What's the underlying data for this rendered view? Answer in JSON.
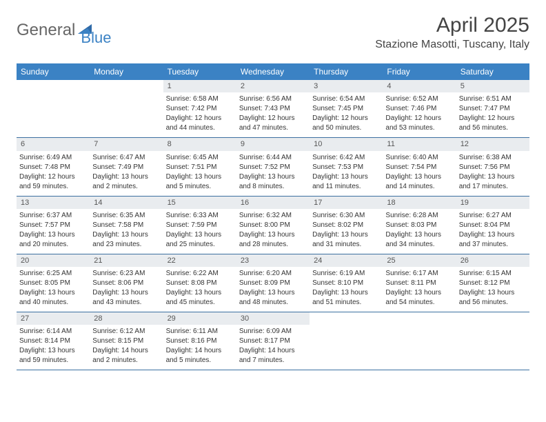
{
  "logo": {
    "text1": "General",
    "text2": "Blue"
  },
  "title": "April 2025",
  "location": "Stazione Masotti, Tuscany, Italy",
  "colors": {
    "header_bg": "#3b82c4",
    "header_text": "#ffffff",
    "daynum_bg": "#e9ecef",
    "week_border": "#3b6fa0",
    "body_text": "#333333",
    "logo_blue": "#3b82c4",
    "logo_gray": "#666666"
  },
  "day_names": [
    "Sunday",
    "Monday",
    "Tuesday",
    "Wednesday",
    "Thursday",
    "Friday",
    "Saturday"
  ],
  "weeks": [
    [
      null,
      null,
      {
        "n": "1",
        "sr": "Sunrise: 6:58 AM",
        "ss": "Sunset: 7:42 PM",
        "dl1": "Daylight: 12 hours",
        "dl2": "and 44 minutes."
      },
      {
        "n": "2",
        "sr": "Sunrise: 6:56 AM",
        "ss": "Sunset: 7:43 PM",
        "dl1": "Daylight: 12 hours",
        "dl2": "and 47 minutes."
      },
      {
        "n": "3",
        "sr": "Sunrise: 6:54 AM",
        "ss": "Sunset: 7:45 PM",
        "dl1": "Daylight: 12 hours",
        "dl2": "and 50 minutes."
      },
      {
        "n": "4",
        "sr": "Sunrise: 6:52 AM",
        "ss": "Sunset: 7:46 PM",
        "dl1": "Daylight: 12 hours",
        "dl2": "and 53 minutes."
      },
      {
        "n": "5",
        "sr": "Sunrise: 6:51 AM",
        "ss": "Sunset: 7:47 PM",
        "dl1": "Daylight: 12 hours",
        "dl2": "and 56 minutes."
      }
    ],
    [
      {
        "n": "6",
        "sr": "Sunrise: 6:49 AM",
        "ss": "Sunset: 7:48 PM",
        "dl1": "Daylight: 12 hours",
        "dl2": "and 59 minutes."
      },
      {
        "n": "7",
        "sr": "Sunrise: 6:47 AM",
        "ss": "Sunset: 7:49 PM",
        "dl1": "Daylight: 13 hours",
        "dl2": "and 2 minutes."
      },
      {
        "n": "8",
        "sr": "Sunrise: 6:45 AM",
        "ss": "Sunset: 7:51 PM",
        "dl1": "Daylight: 13 hours",
        "dl2": "and 5 minutes."
      },
      {
        "n": "9",
        "sr": "Sunrise: 6:44 AM",
        "ss": "Sunset: 7:52 PM",
        "dl1": "Daylight: 13 hours",
        "dl2": "and 8 minutes."
      },
      {
        "n": "10",
        "sr": "Sunrise: 6:42 AM",
        "ss": "Sunset: 7:53 PM",
        "dl1": "Daylight: 13 hours",
        "dl2": "and 11 minutes."
      },
      {
        "n": "11",
        "sr": "Sunrise: 6:40 AM",
        "ss": "Sunset: 7:54 PM",
        "dl1": "Daylight: 13 hours",
        "dl2": "and 14 minutes."
      },
      {
        "n": "12",
        "sr": "Sunrise: 6:38 AM",
        "ss": "Sunset: 7:56 PM",
        "dl1": "Daylight: 13 hours",
        "dl2": "and 17 minutes."
      }
    ],
    [
      {
        "n": "13",
        "sr": "Sunrise: 6:37 AM",
        "ss": "Sunset: 7:57 PM",
        "dl1": "Daylight: 13 hours",
        "dl2": "and 20 minutes."
      },
      {
        "n": "14",
        "sr": "Sunrise: 6:35 AM",
        "ss": "Sunset: 7:58 PM",
        "dl1": "Daylight: 13 hours",
        "dl2": "and 23 minutes."
      },
      {
        "n": "15",
        "sr": "Sunrise: 6:33 AM",
        "ss": "Sunset: 7:59 PM",
        "dl1": "Daylight: 13 hours",
        "dl2": "and 25 minutes."
      },
      {
        "n": "16",
        "sr": "Sunrise: 6:32 AM",
        "ss": "Sunset: 8:00 PM",
        "dl1": "Daylight: 13 hours",
        "dl2": "and 28 minutes."
      },
      {
        "n": "17",
        "sr": "Sunrise: 6:30 AM",
        "ss": "Sunset: 8:02 PM",
        "dl1": "Daylight: 13 hours",
        "dl2": "and 31 minutes."
      },
      {
        "n": "18",
        "sr": "Sunrise: 6:28 AM",
        "ss": "Sunset: 8:03 PM",
        "dl1": "Daylight: 13 hours",
        "dl2": "and 34 minutes."
      },
      {
        "n": "19",
        "sr": "Sunrise: 6:27 AM",
        "ss": "Sunset: 8:04 PM",
        "dl1": "Daylight: 13 hours",
        "dl2": "and 37 minutes."
      }
    ],
    [
      {
        "n": "20",
        "sr": "Sunrise: 6:25 AM",
        "ss": "Sunset: 8:05 PM",
        "dl1": "Daylight: 13 hours",
        "dl2": "and 40 minutes."
      },
      {
        "n": "21",
        "sr": "Sunrise: 6:23 AM",
        "ss": "Sunset: 8:06 PM",
        "dl1": "Daylight: 13 hours",
        "dl2": "and 43 minutes."
      },
      {
        "n": "22",
        "sr": "Sunrise: 6:22 AM",
        "ss": "Sunset: 8:08 PM",
        "dl1": "Daylight: 13 hours",
        "dl2": "and 45 minutes."
      },
      {
        "n": "23",
        "sr": "Sunrise: 6:20 AM",
        "ss": "Sunset: 8:09 PM",
        "dl1": "Daylight: 13 hours",
        "dl2": "and 48 minutes."
      },
      {
        "n": "24",
        "sr": "Sunrise: 6:19 AM",
        "ss": "Sunset: 8:10 PM",
        "dl1": "Daylight: 13 hours",
        "dl2": "and 51 minutes."
      },
      {
        "n": "25",
        "sr": "Sunrise: 6:17 AM",
        "ss": "Sunset: 8:11 PM",
        "dl1": "Daylight: 13 hours",
        "dl2": "and 54 minutes."
      },
      {
        "n": "26",
        "sr": "Sunrise: 6:15 AM",
        "ss": "Sunset: 8:12 PM",
        "dl1": "Daylight: 13 hours",
        "dl2": "and 56 minutes."
      }
    ],
    [
      {
        "n": "27",
        "sr": "Sunrise: 6:14 AM",
        "ss": "Sunset: 8:14 PM",
        "dl1": "Daylight: 13 hours",
        "dl2": "and 59 minutes."
      },
      {
        "n": "28",
        "sr": "Sunrise: 6:12 AM",
        "ss": "Sunset: 8:15 PM",
        "dl1": "Daylight: 14 hours",
        "dl2": "and 2 minutes."
      },
      {
        "n": "29",
        "sr": "Sunrise: 6:11 AM",
        "ss": "Sunset: 8:16 PM",
        "dl1": "Daylight: 14 hours",
        "dl2": "and 5 minutes."
      },
      {
        "n": "30",
        "sr": "Sunrise: 6:09 AM",
        "ss": "Sunset: 8:17 PM",
        "dl1": "Daylight: 14 hours",
        "dl2": "and 7 minutes."
      },
      null,
      null,
      null
    ]
  ]
}
